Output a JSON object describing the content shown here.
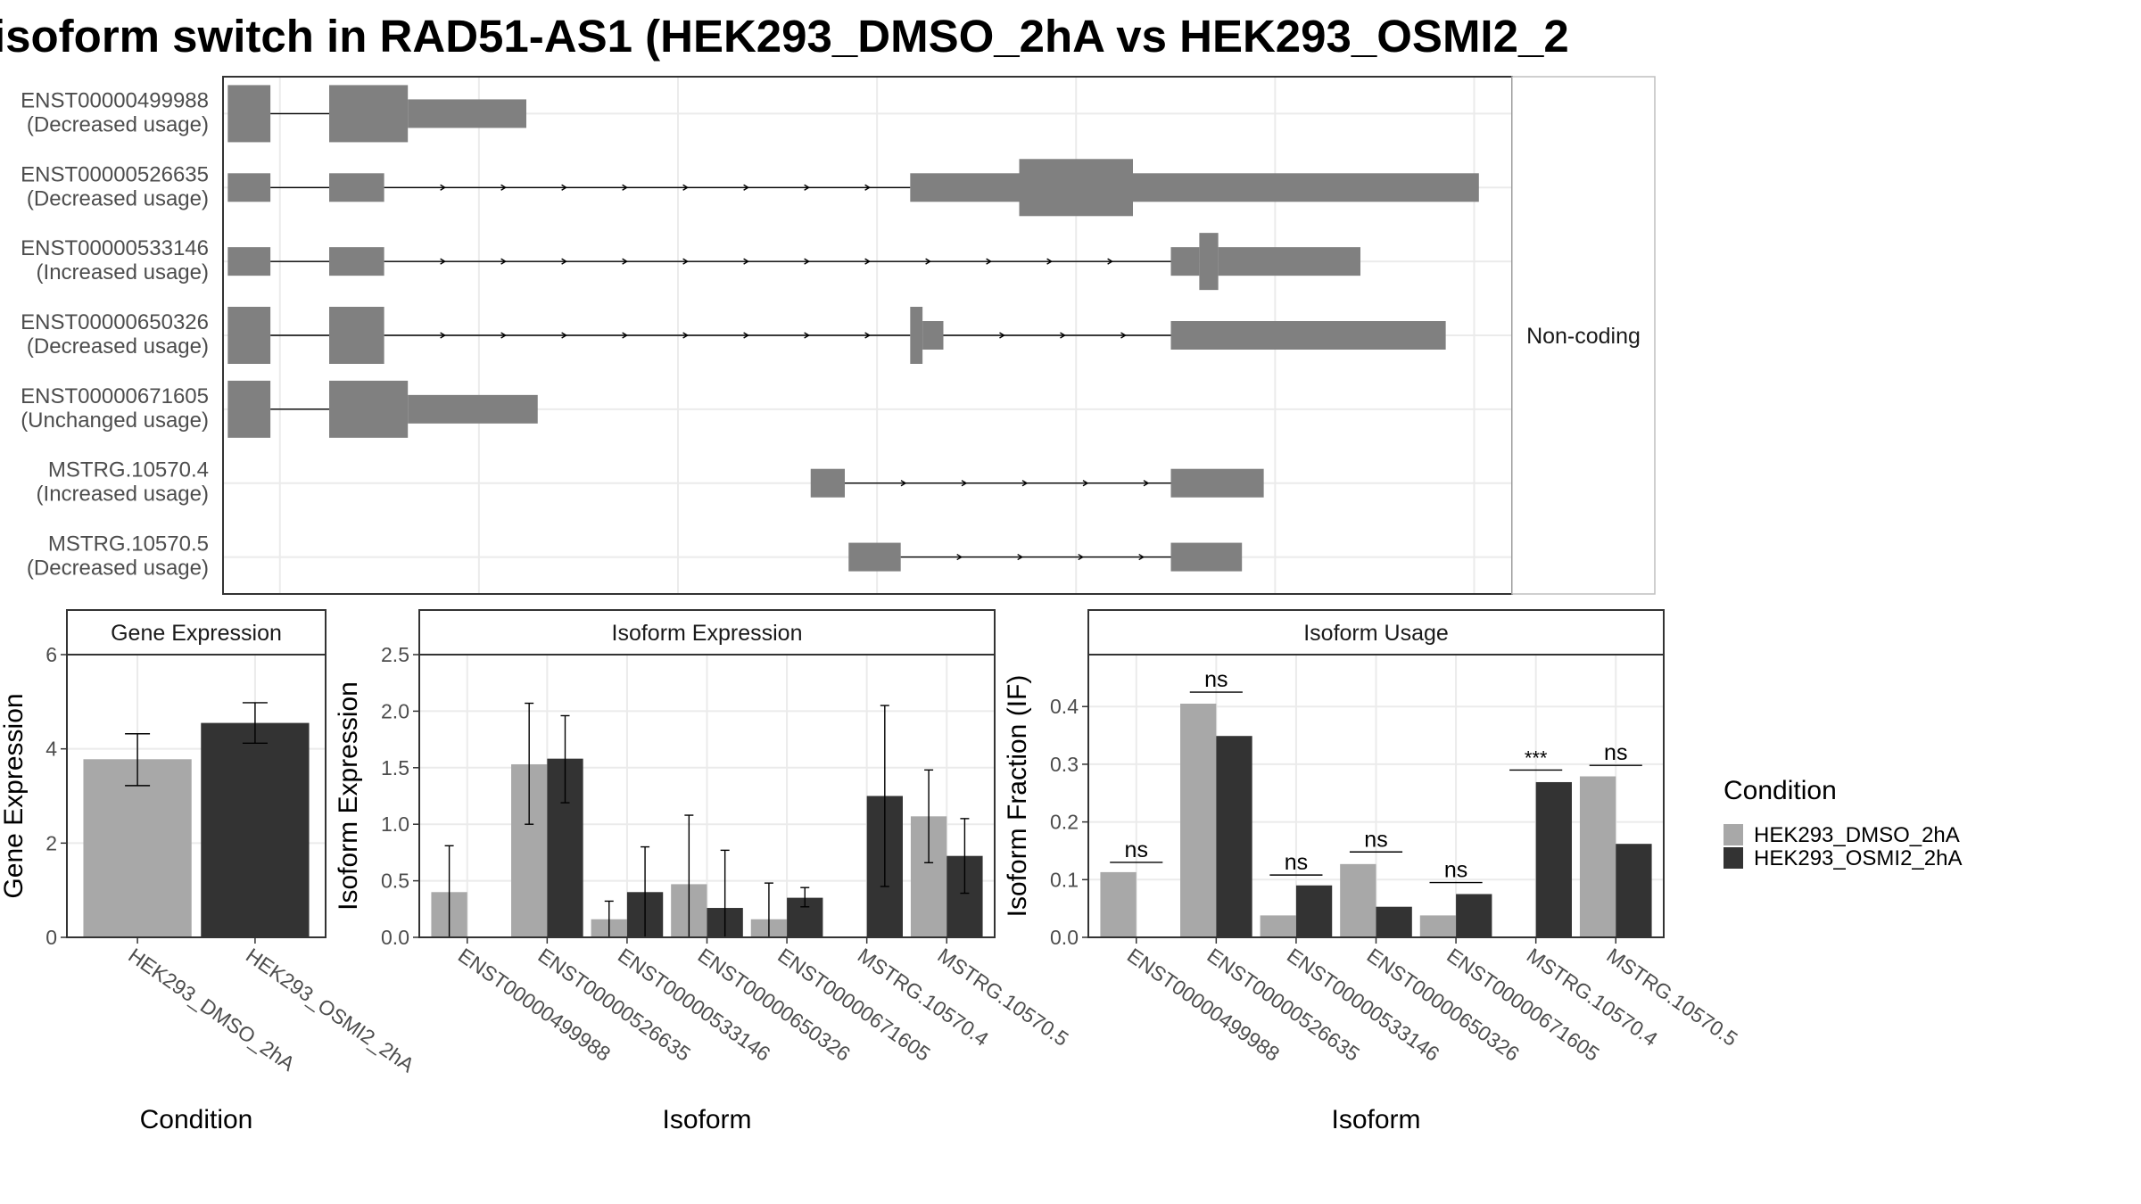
{
  "figure_title": "isoform switch in RAD51-AS1 (HEK293_DMSO_2hA vs HEK293_OSMI2_2",
  "colors": {
    "dmso": "#a8a8a8",
    "osmi": "#333333",
    "isoform_structure": "#808080",
    "grid": "#ebebeb",
    "panel_border": "#333333"
  },
  "legend": {
    "title": "Condition",
    "entries": [
      "HEK293_DMSO_2hA",
      "HEK293_OSMI2_2hA"
    ]
  },
  "structure_panel": {
    "strip_label": "Non-coding",
    "isoforms": [
      {
        "id": "ENST00000499988",
        "usage": "(Decreased usage)"
      },
      {
        "id": "ENST00000526635",
        "usage": "(Decreased usage)"
      },
      {
        "id": "ENST00000533146",
        "usage": "(Increased usage)"
      },
      {
        "id": "ENST00000650326",
        "usage": "(Decreased usage)"
      },
      {
        "id": "ENST00000671605",
        "usage": "(Unchanged usage)"
      },
      {
        "id": "MSTRG.10570.4",
        "usage": "(Increased usage)"
      },
      {
        "id": "MSTRG.10570.5",
        "usage": "(Decreased usage)"
      }
    ]
  },
  "chart_data": [
    {
      "type": "bar",
      "panel": "Gene Expression",
      "title": "Gene Expression",
      "xlabel": "Condition",
      "ylabel": "Gene Expression",
      "ylim": [
        0,
        6
      ],
      "yticks": [
        0,
        2,
        4,
        6
      ],
      "categories": [
        "HEK293_DMSO_2hA",
        "HEK293_OSMI2_2hA"
      ],
      "values": [
        3.78,
        4.55
      ],
      "error_low": [
        3.22,
        4.12
      ],
      "error_high": [
        4.32,
        4.98
      ],
      "grid": true
    },
    {
      "type": "bar",
      "panel": "Isoform Expression",
      "title": "Isoform Expression",
      "xlabel": "Isoform",
      "ylabel": "Isoform Expression",
      "ylim": [
        0,
        2.5
      ],
      "yticks": [
        0.0,
        0.5,
        1.0,
        1.5,
        2.0,
        2.5
      ],
      "ytick_labels": [
        "0.0",
        "0.5",
        "1.0",
        "1.5",
        "2.0",
        "2.5"
      ],
      "categories": [
        "ENST00000499988",
        "ENST00000526635",
        "ENST00000533146",
        "ENST00000650326",
        "ENST00000671605",
        "MSTRG.10570.4",
        "MSTRG.10570.5"
      ],
      "series": [
        {
          "name": "HEK293_DMSO_2hA",
          "values": [
            0.4,
            1.53,
            0.16,
            0.47,
            0.16,
            0.0,
            1.07
          ],
          "error_low": [
            0.0,
            1.0,
            0.0,
            0.0,
            0.0,
            0.0,
            0.66
          ],
          "error_high": [
            0.81,
            2.07,
            0.32,
            1.08,
            0.48,
            0.0,
            1.48
          ]
        },
        {
          "name": "HEK293_OSMI2_2hA",
          "values": [
            0.0,
            1.58,
            0.4,
            0.26,
            0.35,
            1.25,
            0.72
          ],
          "error_low": [
            0.0,
            1.19,
            0.0,
            0.0,
            0.27,
            0.45,
            0.39
          ],
          "error_high": [
            0.0,
            1.96,
            0.8,
            0.77,
            0.44,
            2.05,
            1.05
          ]
        }
      ],
      "grid": true
    },
    {
      "type": "bar",
      "panel": "Isoform Usage",
      "title": "Isoform Usage",
      "xlabel": "Isoform",
      "ylabel": "Isoform Fraction (IF)",
      "ylim": [
        0,
        0.49
      ],
      "yticks": [
        0.0,
        0.1,
        0.2,
        0.3,
        0.4
      ],
      "ytick_labels": [
        "0.0",
        "0.1",
        "0.2",
        "0.3",
        "0.4"
      ],
      "categories": [
        "ENST00000499988",
        "ENST00000526635",
        "ENST00000533146",
        "ENST00000650326",
        "ENST00000671605",
        "MSTRG.10570.4",
        "MSTRG.10570.5"
      ],
      "series": [
        {
          "name": "HEK293_DMSO_2hA",
          "values": [
            0.113,
            0.405,
            0.038,
            0.127,
            0.038,
            0.0,
            0.279
          ]
        },
        {
          "name": "HEK293_OSMI2_2hA",
          "values": [
            0.0,
            0.349,
            0.09,
            0.053,
            0.075,
            0.269,
            0.162
          ]
        }
      ],
      "annotations": [
        "ns",
        "ns",
        "ns",
        "ns",
        "ns",
        "***",
        "ns"
      ],
      "annotation_levels": [
        0.13,
        0.425,
        0.108,
        0.148,
        0.095,
        0.29,
        0.298
      ],
      "grid": true,
      "legend": "right"
    }
  ]
}
